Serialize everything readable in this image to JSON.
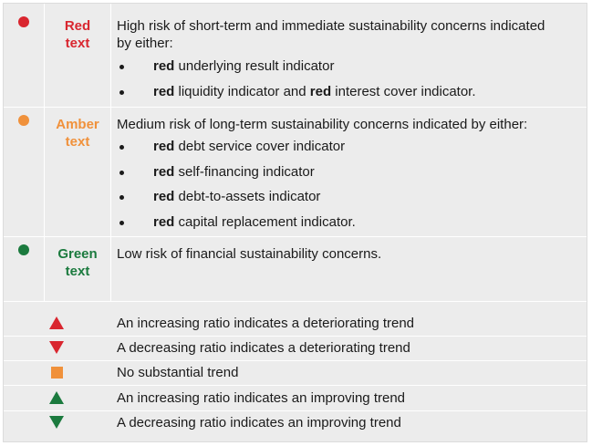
{
  "colors": {
    "red": "#d9262f",
    "amber": "#f0913b",
    "green": "#1b7a3e"
  },
  "ratings": [
    {
      "key": "red",
      "label_line1": "Red",
      "label_line2": "text",
      "intro": "High risk of short-term and immediate sustainability concerns indicated by either:",
      "bullets": [
        {
          "prefix": "red",
          "text": " underlying result indicator",
          "mid": "",
          "mid_text": ""
        },
        {
          "prefix": "red",
          "text": " liquidity indicator and ",
          "mid": "red",
          "mid_text": " interest cover indicator."
        }
      ]
    },
    {
      "key": "amber",
      "label_line1": "Amber",
      "label_line2": "text",
      "intro": "Medium risk of long-term sustainability concerns indicated by either:",
      "bullets": [
        {
          "prefix": "red",
          "text": " debt service cover indicator"
        },
        {
          "prefix": "red",
          "text": " self-financing indicator"
        },
        {
          "prefix": "red",
          "text": " debt-to-assets indicator"
        },
        {
          "prefix": "red",
          "text": " capital replacement indicator."
        }
      ]
    },
    {
      "key": "green",
      "label_line1": "Green",
      "label_line2": "text",
      "intro": "Low risk of financial sustainability concerns."
    }
  ],
  "trends": [
    {
      "icon": "red-up-triangle-icon",
      "text": "An increasing ratio indicates a deteriorating trend"
    },
    {
      "icon": "red-down-triangle-icon",
      "text": "A decreasing ratio indicates a deteriorating trend"
    },
    {
      "icon": "amber-square-icon",
      "text": "No substantial trend"
    },
    {
      "icon": "green-up-triangle-icon",
      "text": "An increasing ratio indicates an improving trend"
    },
    {
      "icon": "green-down-triangle-icon",
      "text": "A decreasing ratio indicates an improving trend"
    }
  ]
}
